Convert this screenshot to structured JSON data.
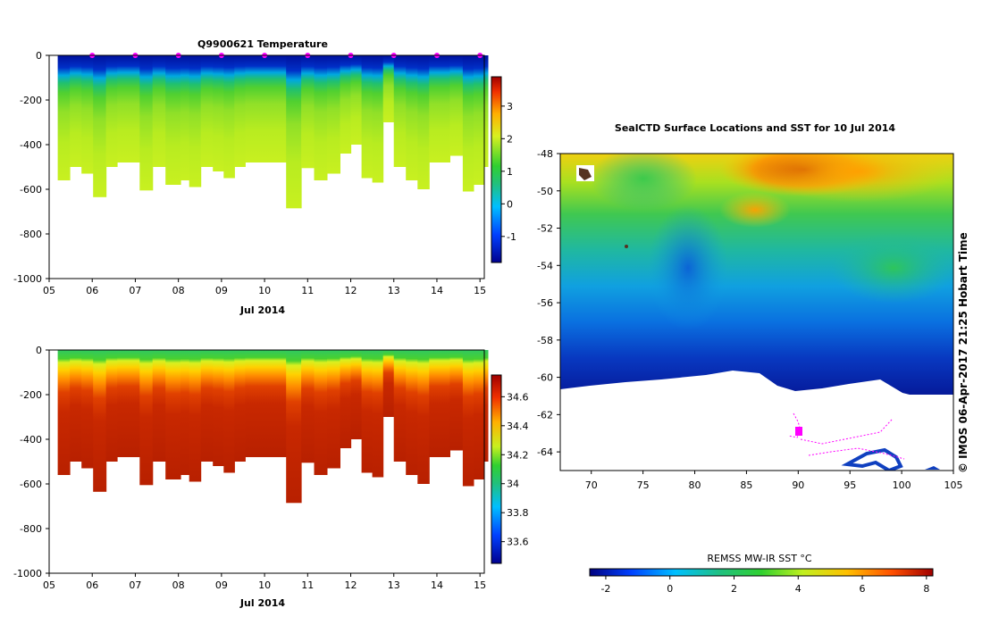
{
  "chart_data": [
    {
      "type": "heatmap",
      "title": "Q9900621  Temperature",
      "xlabel": "Jul 2014",
      "ylabel": "",
      "x_ticks": [
        "05",
        "06",
        "07",
        "08",
        "09",
        "10",
        "11",
        "12",
        "13",
        "14",
        "15"
      ],
      "y_ticks": [
        "0",
        "-200",
        "-400",
        "-600",
        "-800",
        "-1000"
      ],
      "ylim": [
        -1000,
        0
      ],
      "xlim": [
        5.0,
        15.1
      ],
      "colorbar": {
        "ticks": [
          "3",
          "2",
          "1",
          "0",
          "-1"
        ],
        "range": [
          -1.8,
          3.9
        ]
      },
      "profile_times": [
        5.2,
        5.48,
        5.75,
        6.02,
        6.32,
        6.58,
        6.9,
        7.1,
        7.4,
        7.7,
        8.05,
        8.25,
        8.52,
        8.8,
        9.05,
        9.3,
        9.55,
        9.82,
        10.5,
        10.85,
        11.15,
        11.45,
        11.75,
        12.0,
        12.25,
        12.5,
        12.75,
        13.0,
        13.28,
        13.55,
        13.82,
        14.05,
        14.3,
        14.6,
        14.85,
        15.08
      ],
      "profile_depths": [
        560,
        500,
        530,
        635,
        500,
        480,
        480,
        605,
        500,
        580,
        560,
        590,
        500,
        520,
        550,
        500,
        480,
        480,
        685,
        505,
        560,
        530,
        440,
        400,
        550,
        570,
        300,
        500,
        560,
        600,
        480,
        480,
        450,
        610,
        580,
        500
      ],
      "temperature_layers": [
        {
          "depth": 0,
          "value": -1.4
        },
        {
          "depth": 100,
          "value": -0.1
        },
        {
          "depth": 150,
          "value": 0.9
        },
        {
          "depth": 300,
          "value": 1.4
        },
        {
          "depth": 700,
          "value": 1.7
        }
      ],
      "surface_marker_times": [
        6,
        7,
        8,
        9,
        10,
        11,
        12,
        13,
        14,
        15
      ]
    },
    {
      "type": "heatmap",
      "title": "",
      "xlabel": "Jul 2014",
      "ylabel": "",
      "x_ticks": [
        "05",
        "06",
        "07",
        "08",
        "09",
        "10",
        "11",
        "12",
        "13",
        "14",
        "15"
      ],
      "y_ticks": [
        "0",
        "-200",
        "-400",
        "-600",
        "-800",
        "-1000"
      ],
      "ylim": [
        -1000,
        0
      ],
      "xlim": [
        5.0,
        15.1
      ],
      "colorbar": {
        "ticks": [
          "34.6",
          "34.4",
          "34.2",
          "34",
          "33.8",
          "33.6"
        ],
        "range": [
          33.45,
          34.75
        ]
      },
      "salinity_layers": [
        {
          "depth": 0,
          "value": 34.05
        },
        {
          "depth": 100,
          "value": 34.25
        },
        {
          "depth": 200,
          "value": 34.5
        },
        {
          "depth": 350,
          "value": 34.65
        },
        {
          "depth": 700,
          "value": 34.7
        }
      ]
    },
    {
      "type": "heatmap",
      "title": "SealCTD Surface Locations and SST for 10 Jul 2014",
      "x_ticks": [
        "70",
        "75",
        "80",
        "85",
        "90",
        "95",
        "100",
        "105"
      ],
      "y_ticks": [
        "-48",
        "-50",
        "-52",
        "-54",
        "-56",
        "-58",
        "-60",
        "-62",
        "-64"
      ],
      "xlim": [
        67,
        105
      ],
      "ylim": [
        -65,
        -48
      ],
      "colorbar": {
        "label": "REMSS MW-IR SST °C",
        "ticks": [
          "-2",
          "0",
          "2",
          "4",
          "6",
          "8"
        ],
        "range": [
          -2.5,
          8.2
        ]
      },
      "sst_field": [
        {
          "lat": -48.5,
          "value": 5.5
        },
        {
          "lat": -51.5,
          "value": 3.8
        },
        {
          "lat": -54.5,
          "value": 1.2
        },
        {
          "lat": -57.5,
          "value": 0.2
        },
        {
          "lat": -60.0,
          "value": -1.2
        }
      ],
      "ice_edge_lat": -61,
      "credit": "© IMOS 06-Apr-2017 21:25 Hobart Time"
    }
  ]
}
